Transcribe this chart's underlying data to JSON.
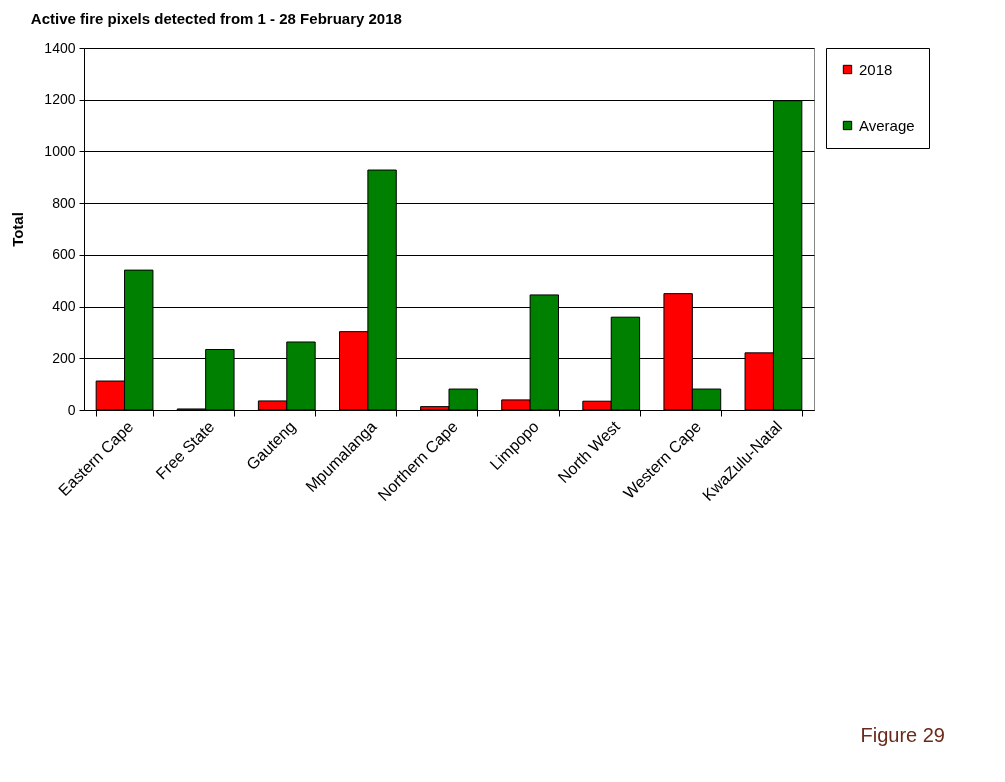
{
  "chart_data": {
    "type": "bar",
    "title": "Active fire pixels detected from 1 - 28 February 2018",
    "ylabel": "Total",
    "categories": [
      "Eastern Cape",
      "Free State",
      "Gauteng",
      "Mpumalanga",
      "Northern Cape",
      "Limpopo",
      "North West",
      "Western Cape",
      "KwaZulu-Natal"
    ],
    "series": [
      {
        "name": "2018",
        "color": "#ff0000",
        "values": [
          112,
          4,
          35,
          303,
          13,
          39,
          34,
          450,
          221
        ]
      },
      {
        "name": "Average",
        "color": "#008000",
        "values": [
          541,
          234,
          263,
          928,
          81,
          445,
          359,
          81,
          1196
        ]
      }
    ],
    "ylim": [
      0,
      1400
    ],
    "yticks": [
      0,
      200,
      400,
      600,
      800,
      1000,
      1200,
      1400
    ],
    "grid": "y",
    "legend": "right",
    "annotations": [
      "Figure 29"
    ]
  }
}
